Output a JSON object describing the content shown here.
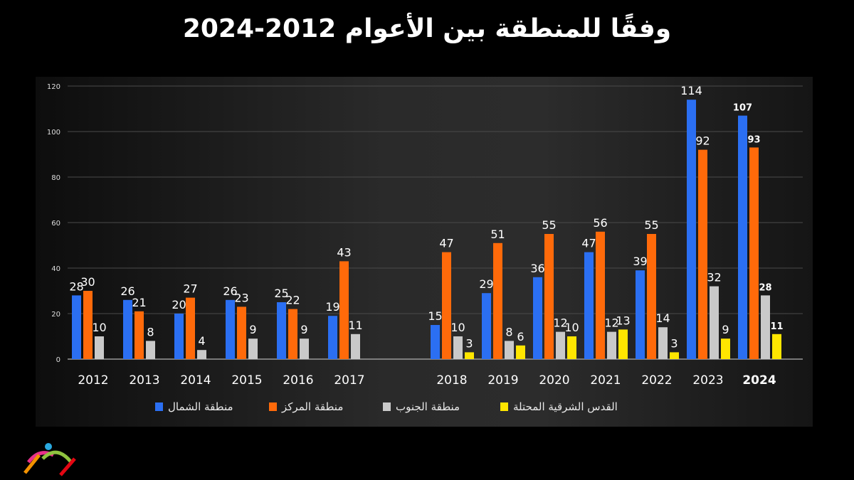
{
  "chart_data": {
    "type": "bar",
    "title": "وفقًا للمنطقة بين الأعوام 2012-2024",
    "categories": [
      "2012",
      "2013",
      "2014",
      "2015",
      "2016",
      "2017",
      "",
      "2018",
      "2019",
      "2020",
      "2021",
      "2022",
      "2023",
      "2024"
    ],
    "ylim": [
      0,
      120
    ],
    "yticks": [
      0,
      20,
      40,
      60,
      80,
      100,
      120
    ],
    "grid": true,
    "legend_position": "bottom",
    "series": [
      {
        "name": "منطقة الشمال",
        "color": "#2b6ff2",
        "values": [
          28,
          26,
          20,
          26,
          25,
          19,
          null,
          15,
          29,
          36,
          47,
          39,
          114,
          107
        ]
      },
      {
        "name": "منطقة المركز",
        "color": "#ff6a0a",
        "values": [
          30,
          21,
          27,
          23,
          22,
          43,
          null,
          47,
          51,
          55,
          56,
          55,
          92,
          93
        ]
      },
      {
        "name": "منطقة الجنوب",
        "color": "#c9c9c9",
        "values": [
          10,
          8,
          4,
          9,
          9,
          11,
          null,
          10,
          8,
          12,
          12,
          14,
          32,
          28
        ]
      },
      {
        "name": "القدس الشرقية المحتلة",
        "color": "#ffe600",
        "values": [
          null,
          null,
          null,
          null,
          null,
          null,
          null,
          3,
          6,
          10,
          13,
          3,
          9,
          11
        ]
      }
    ]
  }
}
